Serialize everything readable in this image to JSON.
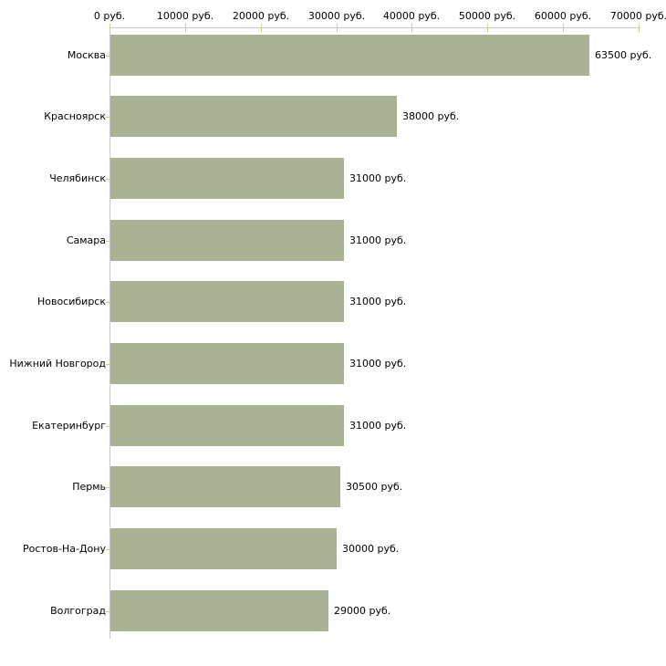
{
  "chart_data": {
    "type": "bar",
    "orientation": "horizontal",
    "title": "",
    "xlabel": "",
    "ylabel": "",
    "categories": [
      "Москва",
      "Красноярск",
      "Челябинск",
      "Самара",
      "Новосибирск",
      "Нижний Новгород",
      "Екатеринбург",
      "Пермь",
      "Ростов-На-Дону",
      "Волгоград"
    ],
    "values": [
      63500,
      38000,
      31000,
      31000,
      31000,
      31000,
      31000,
      30500,
      30000,
      29000
    ],
    "value_labels": [
      "63500 руб.",
      "38000 руб.",
      "31000 руб.",
      "31000 руб.",
      "31000 руб.",
      "31000 руб.",
      "31000 руб.",
      "30500 руб.",
      "30000 руб.",
      "29000 руб."
    ],
    "xlim": [
      0,
      70000
    ],
    "x_ticks": [
      0,
      10000,
      20000,
      30000,
      40000,
      50000,
      60000,
      70000
    ],
    "x_tick_labels": [
      "0 руб.",
      "10000 руб.",
      "20000 руб.",
      "30000 руб.",
      "40000 руб.",
      "50000 руб.",
      "60000 руб.",
      "70000 руб."
    ],
    "axis_position": "top",
    "grid": false,
    "legend": false,
    "colors": {
      "bar_fill": "#AAB296",
      "axis_line": "#C8C8C8",
      "tick_mark": "#CCCC99",
      "text": "#000000",
      "background": "#FFFFFF"
    }
  }
}
